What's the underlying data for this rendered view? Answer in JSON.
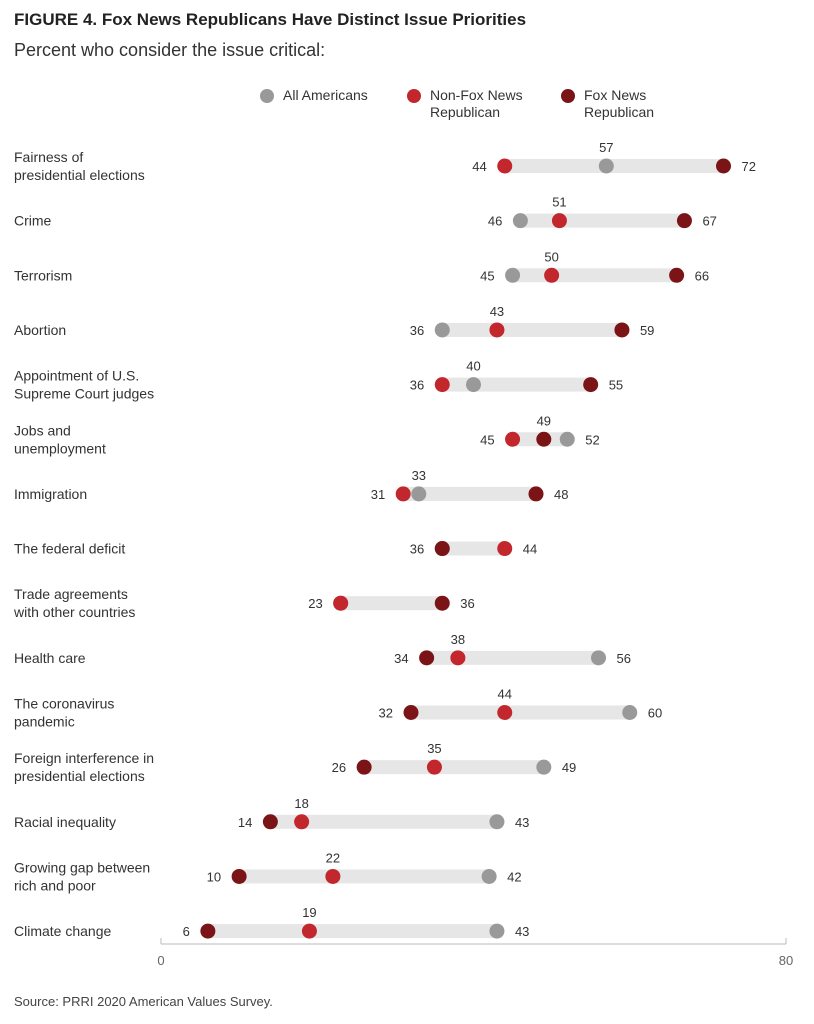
{
  "figure": {
    "title": "FIGURE 4. Fox News Republicans Have Distinct Issue Priorities",
    "subtitle": "Percent who consider the issue critical:",
    "source": "Source: PRRI 2020 American Values Survey."
  },
  "chart_data": {
    "type": "dot-range",
    "xlim": [
      0,
      80
    ],
    "x_ticks": [
      "0",
      "80"
    ],
    "legend_position": "top",
    "series": [
      {
        "name": "All Americans",
        "key": "all",
        "color": "#999999"
      },
      {
        "name": "Non-Fox News Republican",
        "key": "nonfox",
        "color": "#c1272d"
      },
      {
        "name": "Fox News Republican",
        "key": "fox",
        "color": "#7a1416"
      }
    ],
    "legend_lines": {
      "all": [
        "All Americans"
      ],
      "nonfox": [
        "Non-Fox News",
        "Republican"
      ],
      "fox": [
        "Fox News",
        "Republican"
      ]
    },
    "categories": [
      {
        "label": [
          "Fairness of",
          "presidential elections"
        ],
        "all": 57,
        "nonfox": 44,
        "fox": 72
      },
      {
        "label": [
          "Crime"
        ],
        "all": 46,
        "nonfox": 51,
        "fox": 67
      },
      {
        "label": [
          "Terrorism"
        ],
        "all": 45,
        "nonfox": 50,
        "fox": 66
      },
      {
        "label": [
          "Abortion"
        ],
        "all": 36,
        "nonfox": 43,
        "fox": 59
      },
      {
        "label": [
          "Appointment of U.S.",
          "Supreme Court judges"
        ],
        "all": 40,
        "nonfox": 36,
        "fox": 55
      },
      {
        "label": [
          "Jobs and",
          "unemployment"
        ],
        "all": 52,
        "nonfox": 45,
        "fox": 49
      },
      {
        "label": [
          "Immigration"
        ],
        "all": 33,
        "nonfox": 31,
        "fox": 48
      },
      {
        "label": [
          "The federal deficit"
        ],
        "all": 36,
        "nonfox": 44,
        "fox": 36
      },
      {
        "label": [
          "Trade agreements",
          "with other countries"
        ],
        "all": 23,
        "nonfox": 23,
        "fox": 36
      },
      {
        "label": [
          "Health care"
        ],
        "all": 56,
        "nonfox": 38,
        "fox": 34
      },
      {
        "label": [
          "The coronavirus",
          "pandemic"
        ],
        "all": 60,
        "nonfox": 44,
        "fox": 32
      },
      {
        "label": [
          "Foreign interference in",
          "presidential elections"
        ],
        "all": 49,
        "nonfox": 35,
        "fox": 26
      },
      {
        "label": [
          "Racial inequality"
        ],
        "all": 43,
        "nonfox": 18,
        "fox": 14
      },
      {
        "label": [
          "Growing gap between",
          "rich and poor"
        ],
        "all": 42,
        "nonfox": 22,
        "fox": 10
      },
      {
        "label": [
          "Climate change"
        ],
        "all": 43,
        "nonfox": 19,
        "fox": 6
      }
    ]
  }
}
